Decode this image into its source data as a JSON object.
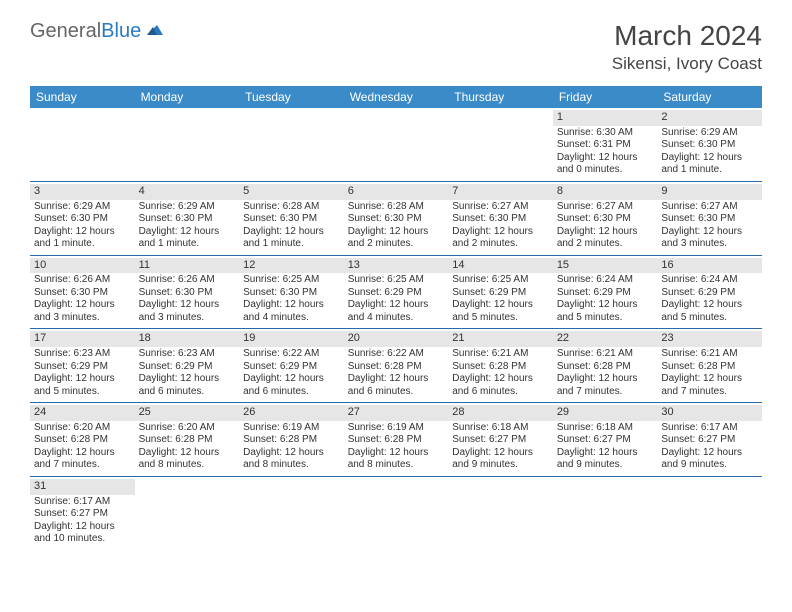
{
  "logo": {
    "text1": "General",
    "text2": "Blue"
  },
  "title": "March 2024",
  "location": "Sikensi, Ivory Coast",
  "colors": {
    "header_bg": "#3b8bc9",
    "header_text": "#ffffff",
    "daynum_bg": "#e6e6e6",
    "border": "#2a6aa8",
    "text": "#333333",
    "logo_gray": "#666666",
    "logo_blue": "#2a7abf"
  },
  "dayNames": [
    "Sunday",
    "Monday",
    "Tuesday",
    "Wednesday",
    "Thursday",
    "Friday",
    "Saturday"
  ],
  "weeks": [
    [
      null,
      null,
      null,
      null,
      null,
      {
        "n": "1",
        "sr": "6:30 AM",
        "ss": "6:31 PM",
        "dl": "12 hours and 0 minutes."
      },
      {
        "n": "2",
        "sr": "6:29 AM",
        "ss": "6:30 PM",
        "dl": "12 hours and 1 minute."
      }
    ],
    [
      {
        "n": "3",
        "sr": "6:29 AM",
        "ss": "6:30 PM",
        "dl": "12 hours and 1 minute."
      },
      {
        "n": "4",
        "sr": "6:29 AM",
        "ss": "6:30 PM",
        "dl": "12 hours and 1 minute."
      },
      {
        "n": "5",
        "sr": "6:28 AM",
        "ss": "6:30 PM",
        "dl": "12 hours and 1 minute."
      },
      {
        "n": "6",
        "sr": "6:28 AM",
        "ss": "6:30 PM",
        "dl": "12 hours and 2 minutes."
      },
      {
        "n": "7",
        "sr": "6:27 AM",
        "ss": "6:30 PM",
        "dl": "12 hours and 2 minutes."
      },
      {
        "n": "8",
        "sr": "6:27 AM",
        "ss": "6:30 PM",
        "dl": "12 hours and 2 minutes."
      },
      {
        "n": "9",
        "sr": "6:27 AM",
        "ss": "6:30 PM",
        "dl": "12 hours and 3 minutes."
      }
    ],
    [
      {
        "n": "10",
        "sr": "6:26 AM",
        "ss": "6:30 PM",
        "dl": "12 hours and 3 minutes."
      },
      {
        "n": "11",
        "sr": "6:26 AM",
        "ss": "6:30 PM",
        "dl": "12 hours and 3 minutes."
      },
      {
        "n": "12",
        "sr": "6:25 AM",
        "ss": "6:30 PM",
        "dl": "12 hours and 4 minutes."
      },
      {
        "n": "13",
        "sr": "6:25 AM",
        "ss": "6:29 PM",
        "dl": "12 hours and 4 minutes."
      },
      {
        "n": "14",
        "sr": "6:25 AM",
        "ss": "6:29 PM",
        "dl": "12 hours and 5 minutes."
      },
      {
        "n": "15",
        "sr": "6:24 AM",
        "ss": "6:29 PM",
        "dl": "12 hours and 5 minutes."
      },
      {
        "n": "16",
        "sr": "6:24 AM",
        "ss": "6:29 PM",
        "dl": "12 hours and 5 minutes."
      }
    ],
    [
      {
        "n": "17",
        "sr": "6:23 AM",
        "ss": "6:29 PM",
        "dl": "12 hours and 5 minutes."
      },
      {
        "n": "18",
        "sr": "6:23 AM",
        "ss": "6:29 PM",
        "dl": "12 hours and 6 minutes."
      },
      {
        "n": "19",
        "sr": "6:22 AM",
        "ss": "6:29 PM",
        "dl": "12 hours and 6 minutes."
      },
      {
        "n": "20",
        "sr": "6:22 AM",
        "ss": "6:28 PM",
        "dl": "12 hours and 6 minutes."
      },
      {
        "n": "21",
        "sr": "6:21 AM",
        "ss": "6:28 PM",
        "dl": "12 hours and 6 minutes."
      },
      {
        "n": "22",
        "sr": "6:21 AM",
        "ss": "6:28 PM",
        "dl": "12 hours and 7 minutes."
      },
      {
        "n": "23",
        "sr": "6:21 AM",
        "ss": "6:28 PM",
        "dl": "12 hours and 7 minutes."
      }
    ],
    [
      {
        "n": "24",
        "sr": "6:20 AM",
        "ss": "6:28 PM",
        "dl": "12 hours and 7 minutes."
      },
      {
        "n": "25",
        "sr": "6:20 AM",
        "ss": "6:28 PM",
        "dl": "12 hours and 8 minutes."
      },
      {
        "n": "26",
        "sr": "6:19 AM",
        "ss": "6:28 PM",
        "dl": "12 hours and 8 minutes."
      },
      {
        "n": "27",
        "sr": "6:19 AM",
        "ss": "6:28 PM",
        "dl": "12 hours and 8 minutes."
      },
      {
        "n": "28",
        "sr": "6:18 AM",
        "ss": "6:27 PM",
        "dl": "12 hours and 9 minutes."
      },
      {
        "n": "29",
        "sr": "6:18 AM",
        "ss": "6:27 PM",
        "dl": "12 hours and 9 minutes."
      },
      {
        "n": "30",
        "sr": "6:17 AM",
        "ss": "6:27 PM",
        "dl": "12 hours and 9 minutes."
      }
    ],
    [
      {
        "n": "31",
        "sr": "6:17 AM",
        "ss": "6:27 PM",
        "dl": "12 hours and 10 minutes."
      },
      null,
      null,
      null,
      null,
      null,
      null
    ]
  ],
  "labels": {
    "sunrise": "Sunrise: ",
    "sunset": "Sunset: ",
    "daylight": "Daylight: "
  }
}
